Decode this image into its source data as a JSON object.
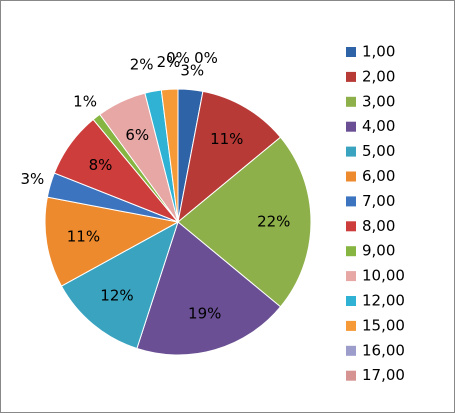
{
  "chart_data": {
    "type": "pie",
    "categories": [
      "1,00",
      "2,00",
      "3,00",
      "4,00",
      "5,00",
      "6,00",
      "7,00",
      "8,00",
      "9,00",
      "10,00",
      "12,00",
      "15,00",
      "16,00",
      "17,00"
    ],
    "values": [
      3,
      11,
      22,
      19,
      12,
      11,
      3,
      8,
      1,
      6,
      2,
      2,
      0,
      0
    ],
    "value_labels": [
      "3%",
      "11%",
      "22%",
      "19%",
      "12%",
      "11%",
      "3%",
      "8%",
      "1%",
      "6%",
      "2%",
      "2%",
      "0%",
      "0%"
    ],
    "colors": [
      "#2f63a8",
      "#b83a37",
      "#8db04a",
      "#6a4f94",
      "#3aa3bf",
      "#ee8a2e",
      "#3c74c0",
      "#cc3d3b",
      "#86b542",
      "#e6a7a5",
      "#2fb2d4",
      "#f59a36",
      "#9d9dcc",
      "#d59492"
    ],
    "legend": "right"
  }
}
